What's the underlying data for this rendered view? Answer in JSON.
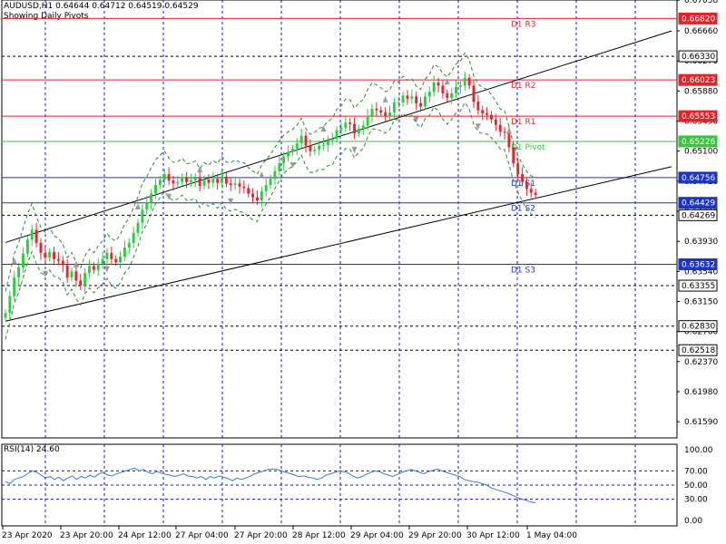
{
  "header": {
    "symbol_line": "AUDUSD,H1  0.64644 0.64712 0.64519 0.64529",
    "pivots_note": "Showing Daily Pivots"
  },
  "rsi_header": "RSI(14) 24.60",
  "colors": {
    "background": "#ffffff",
    "bull_candle": "#2ecc40",
    "bear_candle": "#e8242a",
    "resistance": "#e0242a",
    "pivot": "#39c439",
    "support": "#1a33c8",
    "grid": "#1a1aa0",
    "channel": "#000000",
    "rsi_line": "#3a7bd5",
    "bollinger": "#2a8a2a"
  },
  "chart_data": {
    "type": "candlestick",
    "symbol": "AUDUSD",
    "timeframe": "H1",
    "ohlc_last": {
      "open": 0.64644,
      "high": 0.64712,
      "low": 0.64519,
      "close": 0.64529
    },
    "ylim": [
      0.6138,
      0.6706
    ],
    "price_ticks": [
      "0.67058",
      "0.66660",
      "0.66270",
      "0.65880",
      "0.65490",
      "0.65100",
      "0.64710",
      "0.64320",
      "0.63930",
      "0.63540",
      "0.63150",
      "0.62760",
      "0.62370",
      "0.61980",
      "0.61590"
    ],
    "x_ticks": [
      "23 Apr 2020",
      "23 Apr 20:00",
      "24 Apr 12:00",
      "27 Apr 04:00",
      "27 Apr 20:00",
      "28 Apr 12:00",
      "29 Apr 04:00",
      "29 Apr 20:00",
      "30 Apr 12:00",
      "1 May 04:00"
    ],
    "pivots": [
      {
        "label": "D1 R3",
        "value": 0.6682,
        "kind": "resistance"
      },
      {
        "label": "D1 R2",
        "value": 0.66023,
        "kind": "resistance"
      },
      {
        "label": "D1 R1",
        "value": 0.65553,
        "kind": "resistance"
      },
      {
        "label": "D1 Pivot",
        "value": 0.65226,
        "kind": "pivot"
      },
      {
        "label": "D1 S1",
        "value": 0.64756,
        "kind": "support"
      },
      {
        "label": "D1 S2",
        "value": 0.64429,
        "kind": "support"
      },
      {
        "label": "D1 S3",
        "value": 0.63632,
        "kind": "support"
      }
    ],
    "price_badges": [
      {
        "value": "0.66820",
        "color": "#e0242a"
      },
      {
        "value": "0.66330",
        "color": "#000000"
      },
      {
        "value": "0.66023",
        "color": "#e0242a"
      },
      {
        "value": "0.65553",
        "color": "#e0242a"
      },
      {
        "value": "0.65226",
        "color": "#39c439"
      },
      {
        "value": "0.64756",
        "color": "#1a33c8"
      },
      {
        "value": "0.64429",
        "color": "#1a33c8"
      },
      {
        "value": "0.64269",
        "color": "#000000"
      },
      {
        "value": "0.63632",
        "color": "#1a33c8"
      },
      {
        "value": "0.63355",
        "color": "#000000"
      },
      {
        "value": "0.62830",
        "color": "#000000"
      },
      {
        "value": "0.62518",
        "color": "#000000"
      }
    ],
    "dashed_levels": [
      0.6633,
      0.64269,
      0.63355,
      0.6283,
      0.62518
    ],
    "channel": [
      {
        "name": "upper",
        "start": [
          0,
          0.63915
        ],
        "end": [
          184,
          0.66659
        ]
      },
      {
        "name": "lower",
        "start": [
          0,
          0.62894
        ],
        "end": [
          184,
          0.64898
        ]
      }
    ],
    "candles_count": 184,
    "closes": [
      0.63,
      0.6322,
      0.6346,
      0.6359,
      0.6377,
      0.6395,
      0.6408,
      0.6391,
      0.6378,
      0.6372,
      0.6379,
      0.637,
      0.6368,
      0.6362,
      0.6346,
      0.6354,
      0.6342,
      0.6336,
      0.6352,
      0.6361,
      0.6356,
      0.6364,
      0.637,
      0.6378,
      0.637,
      0.6366,
      0.6373,
      0.6385,
      0.6391,
      0.6404,
      0.6417,
      0.6434,
      0.6443,
      0.6455,
      0.6466,
      0.6473,
      0.648,
      0.6472,
      0.6468,
      0.647,
      0.6476,
      0.647,
      0.6472,
      0.6475,
      0.6465,
      0.6473,
      0.6469,
      0.6474,
      0.6469,
      0.6477,
      0.6468,
      0.6466,
      0.6468,
      0.6464,
      0.6462,
      0.6455,
      0.645,
      0.6446,
      0.6458,
      0.6466,
      0.6474,
      0.6484,
      0.6494,
      0.6503,
      0.6509,
      0.6513,
      0.652,
      0.653,
      0.6517,
      0.651,
      0.6512,
      0.6517,
      0.6518,
      0.6524,
      0.6526,
      0.6537,
      0.654,
      0.6547,
      0.6545,
      0.6533,
      0.6539,
      0.6543,
      0.6556,
      0.6565,
      0.6563,
      0.656,
      0.6556,
      0.656,
      0.6573,
      0.6573,
      0.6582,
      0.6578,
      0.6581,
      0.6572,
      0.6568,
      0.6581,
      0.6587,
      0.6599,
      0.6595,
      0.6585,
      0.6579,
      0.6585,
      0.6593,
      0.6595,
      0.6605,
      0.6595,
      0.6574,
      0.6563,
      0.6559,
      0.6557,
      0.6551,
      0.6544,
      0.6535,
      0.6534,
      0.6515,
      0.6494,
      0.648,
      0.647,
      0.6461,
      0.6456,
      0.6453
    ],
    "rsi": {
      "name": "RSI(14)",
      "last_value": 24.6,
      "ylim": [
        0,
        100
      ],
      "ticks": [
        "100.00",
        "70.00",
        "50.00",
        "30.00",
        "0.00"
      ],
      "levels": [
        70,
        50,
        30
      ],
      "values": [
        55,
        52,
        58,
        60,
        62,
        66,
        70,
        68,
        64,
        60,
        62,
        58,
        61,
        56,
        60,
        63,
        58,
        62,
        60,
        64,
        61,
        66,
        68,
        64,
        63,
        66,
        68,
        70,
        72,
        74,
        70,
        72,
        68,
        66,
        69,
        67,
        65,
        64,
        62,
        64,
        66,
        63,
        62,
        60,
        62,
        58,
        62,
        60,
        63,
        61,
        59,
        56,
        60,
        58,
        60,
        63,
        66,
        68,
        70,
        72,
        73,
        72,
        70,
        68,
        66,
        64,
        62,
        63,
        61,
        60,
        58,
        60,
        64,
        66,
        68,
        70,
        69,
        67,
        63,
        60,
        62,
        65,
        68,
        70,
        69,
        66,
        64,
        62,
        65,
        68,
        70,
        72,
        70,
        68,
        66,
        69,
        71,
        73,
        70,
        68,
        66,
        64,
        62,
        58,
        56,
        55,
        54,
        52,
        50,
        46,
        44,
        42,
        40,
        38,
        35,
        32,
        30,
        28,
        26,
        25
      ]
    }
  }
}
